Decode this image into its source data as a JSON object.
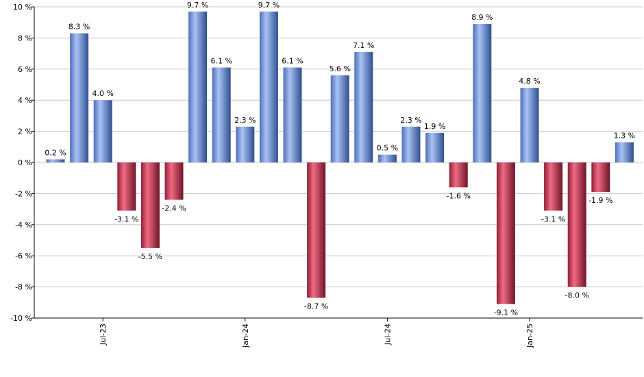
{
  "chart_data": {
    "type": "bar",
    "title": "",
    "xlabel": "",
    "ylabel": "",
    "ylim": [
      -10,
      10
    ],
    "y_ticks": [
      -10,
      -8,
      -6,
      -4,
      -2,
      0,
      2,
      4,
      6,
      8,
      10
    ],
    "y_tick_labels": [
      "-10 %",
      "-8 %",
      "-6 %",
      "-4 %",
      "-2 %",
      "0 %",
      "2 %",
      "4 %",
      "6 %",
      "8 %",
      "10 %"
    ],
    "grid": true,
    "x_tick_labels": [
      {
        "label": "Jul-23",
        "index": 2
      },
      {
        "label": "Jan-24",
        "index": 8
      },
      {
        "label": "Jul-24",
        "index": 14
      },
      {
        "label": "Jan-25",
        "index": 20
      }
    ],
    "values": [
      0.2,
      8.3,
      4.0,
      -3.1,
      -5.5,
      -2.4,
      9.7,
      6.1,
      2.3,
      9.7,
      6.1,
      -8.7,
      5.6,
      7.1,
      0.5,
      2.3,
      1.9,
      -1.6,
      8.9,
      -9.1,
      4.8,
      -3.1,
      -8.0,
      -1.9,
      1.3
    ],
    "data_labels": [
      "0.2 %",
      "8.3 %",
      "4.0 %",
      "-3.1 %",
      "-5.5 %",
      "-2.4 %",
      "9.7 %",
      "6.1 %",
      "2.3 %",
      "9.7 %",
      "6.1 %",
      "-8.7 %",
      "5.6 %",
      "7.1 %",
      "0.5 %",
      "2.3 %",
      "1.9 %",
      "-1.6 %",
      "8.9 %",
      "-9.1 %",
      "4.8 %",
      "-3.1 %",
      "-8.0 %",
      "-1.9 %",
      "1.3 %"
    ],
    "colors": {
      "positive": "#7a9be0",
      "negative": "#c83a56",
      "grid": "#c8c8c8",
      "axis": "#000000"
    }
  }
}
